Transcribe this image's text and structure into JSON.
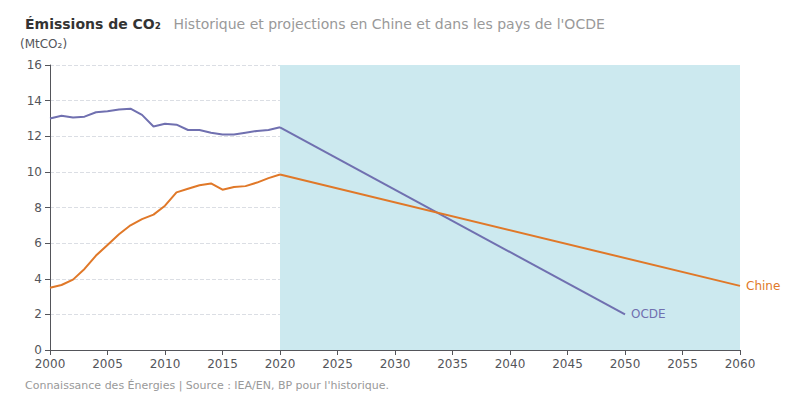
{
  "chart_data": {
    "type": "line",
    "title": "Émissions de CO₂",
    "subtitle": "Historique et projections en Chine et dans les pays de l'OCDE",
    "ylabel": "(MtCO₂)",
    "footnote": "Connaissance des Énergies | Source : IEA/EN, BP pour l'historique.",
    "xlim": [
      2000,
      2060
    ],
    "ylim": [
      0,
      16
    ],
    "xticks": [
      2000,
      2005,
      2010,
      2015,
      2020,
      2025,
      2030,
      2035,
      2040,
      2045,
      2050,
      2055,
      2060
    ],
    "yticks": [
      0,
      2,
      4,
      6,
      8,
      10,
      12,
      14,
      16
    ],
    "grid": true,
    "projection_start": 2020,
    "projection_color": "#cce9ef",
    "series": [
      {
        "name": "OCDE",
        "color": "#7070b0",
        "x": [
          2000,
          2001,
          2002,
          2003,
          2004,
          2005,
          2006,
          2007,
          2008,
          2009,
          2010,
          2011,
          2012,
          2013,
          2014,
          2015,
          2016,
          2017,
          2018,
          2019,
          2020
        ],
        "values": [
          13.0,
          13.15,
          13.05,
          13.1,
          13.35,
          13.4,
          13.5,
          13.55,
          13.2,
          12.55,
          12.7,
          12.65,
          12.35,
          12.35,
          12.2,
          12.1,
          12.1,
          12.2,
          12.3,
          12.35,
          12.5
        ]
      },
      {
        "name": "Chine",
        "color": "#e07828",
        "x": [
          2000,
          2001,
          2002,
          2003,
          2004,
          2005,
          2006,
          2007,
          2008,
          2009,
          2010,
          2011,
          2012,
          2013,
          2014,
          2015,
          2016,
          2017,
          2018,
          2019,
          2020
        ],
        "values": [
          3.5,
          3.65,
          3.95,
          4.55,
          5.3,
          5.9,
          6.5,
          7.0,
          7.35,
          7.6,
          8.1,
          8.85,
          9.05,
          9.25,
          9.35,
          9.0,
          9.15,
          9.2,
          9.4,
          9.65,
          9.85
        ]
      },
      {
        "name": "OCDE",
        "color": "#7070b0",
        "x": [
          2020,
          2050
        ],
        "values": [
          12.5,
          2.0
        ]
      },
      {
        "name": "Chine",
        "color": "#e07828",
        "x": [
          2020,
          2060
        ],
        "values": [
          9.85,
          3.6
        ]
      }
    ]
  }
}
